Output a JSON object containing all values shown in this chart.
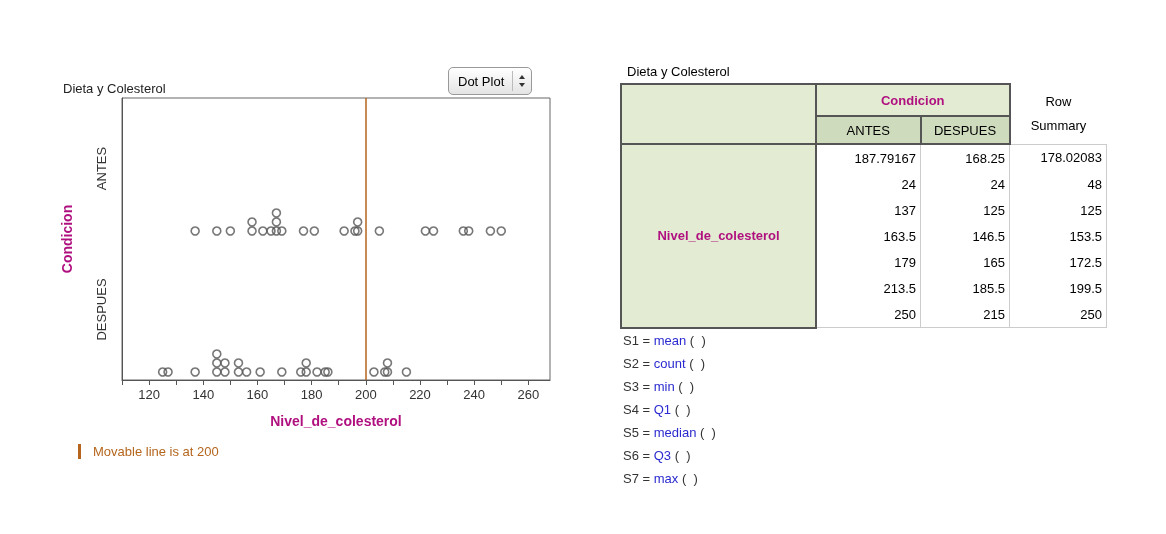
{
  "chart_data": [
    {
      "type": "scatter",
      "orientation": "horizontal",
      "title": "Dieta y Colesterol",
      "xlabel": "Nivel_de_colesterol",
      "ylabel": "Condicion",
      "categories": [
        "ANTES",
        "DESPUES"
      ],
      "xlim": [
        110,
        268
      ],
      "xticks": [
        {
          "value": 110,
          "label": null
        },
        120,
        {
          "value": 130,
          "label": null
        },
        140,
        {
          "value": 150,
          "label": null
        },
        160,
        {
          "value": 170,
          "label": null
        },
        180,
        {
          "value": 190,
          "label": null
        },
        200,
        {
          "value": 210,
          "label": null
        },
        220,
        {
          "value": 230,
          "label": null
        },
        240,
        {
          "value": 250,
          "label": null
        },
        260
      ],
      "marker": "circle",
      "grid": false,
      "series": [
        {
          "color": "#555555",
          "values": [
            137,
            145,
            150,
            158,
            158,
            162,
            165,
            167,
            167,
            167,
            169,
            177,
            181,
            192,
            196,
            197,
            197,
            205,
            222,
            225,
            236,
            238,
            246,
            250
          ],
          "x": [
            "ANTES",
            "ANTES",
            "ANTES",
            "ANTES",
            "ANTES",
            "ANTES",
            "ANTES",
            "ANTES",
            "ANTES",
            "ANTES",
            "ANTES",
            "ANTES",
            "ANTES",
            "ANTES",
            "ANTES",
            "ANTES",
            "ANTES",
            "ANTES",
            "ANTES",
            "ANTES",
            "ANTES",
            "ANTES",
            "ANTES",
            "ANTES"
          ]
        },
        {
          "color": "#555555",
          "values": [
            125,
            127,
            137,
            145,
            145,
            145,
            148,
            148,
            153,
            153,
            156,
            161,
            169,
            176,
            178,
            178,
            182,
            185,
            186,
            203,
            207,
            208,
            208,
            215
          ],
          "x": [
            "DESPUES",
            "DESPUES",
            "DESPUES",
            "DESPUES",
            "DESPUES",
            "DESPUES",
            "DESPUES",
            "DESPUES",
            "DESPUES",
            "DESPUES",
            "DESPUES",
            "DESPUES",
            "DESPUES",
            "DESPUES",
            "DESPUES",
            "DESPUES",
            "DESPUES",
            "DESPUES",
            "DESPUES",
            "DESPUES",
            "DESPUES",
            "DESPUES",
            "DESPUES",
            "DESPUES"
          ]
        }
      ],
      "ref_lines": [
        {
          "axis": "x",
          "value": 200,
          "label": "Movable line is at 200",
          "color": "#b5651d"
        }
      ],
      "annotations": [
        "Dot Plot"
      ]
    },
    {
      "type": "other",
      "title": "Dieta y Colesterol",
      "xlabel": "Condicion",
      "ylabel": "Nivel_de_colesterol",
      "categories": [
        "ANTES",
        "DESPUES",
        "Row Summary"
      ],
      "annotations": [
        "187.79167",
        "168.25",
        "178.02083",
        "24",
        "24",
        "48",
        "137",
        "125",
        "125",
        "163.5",
        "146.5",
        "153.5",
        "179",
        "165",
        "172.5",
        "213.5",
        "185.5",
        "199.5",
        "250",
        "215",
        "250",
        "S1 = mean (  )",
        "S2 = count (  )",
        "S3 = min (  )",
        "S4 = Q1 (  )",
        "S5 = median (  )",
        "S6 = Q3 (  )",
        "S7 = max (  )"
      ]
    }
  ]
}
